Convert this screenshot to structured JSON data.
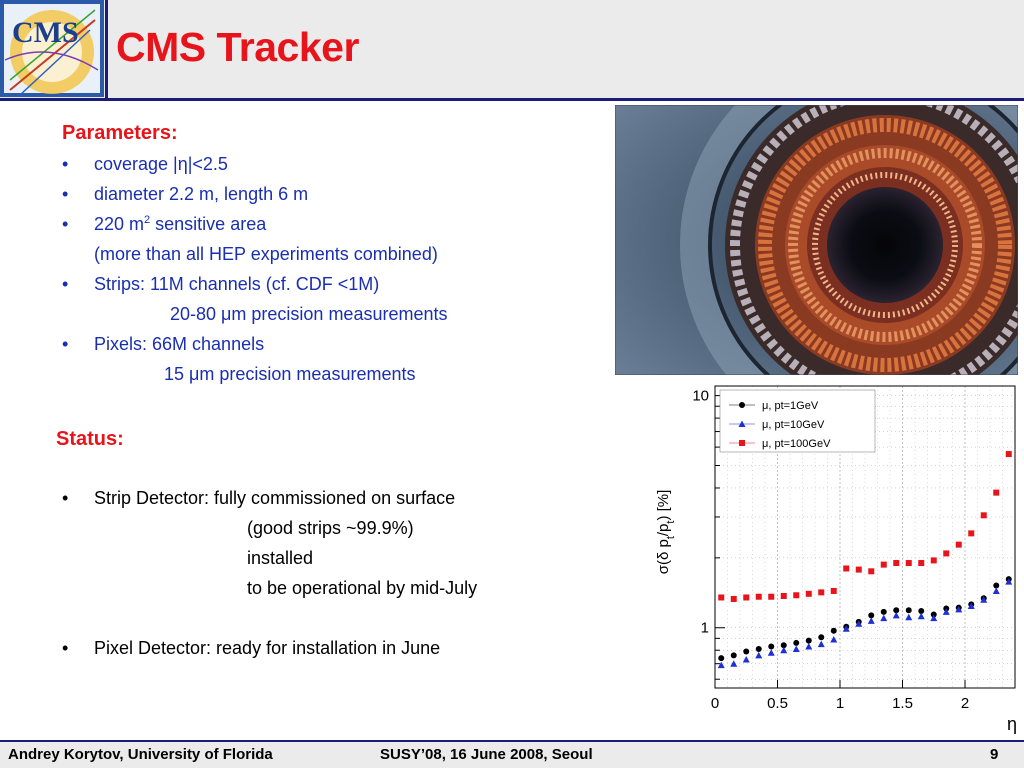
{
  "header": {
    "title": "CMS Tracker",
    "logo_text": "CMS"
  },
  "parameters": {
    "heading": "Parameters:",
    "lines": [
      "coverage |η|<2.5",
      "diameter 2.2 m, length 6 m",
      "220 m",
      "2",
      " sensitive area",
      "(more than all HEP experiments combined)",
      "Strips: 11M channels (cf. CDF <1M)",
      "20-80 μm precision measurements",
      "Pixels: 66M channels",
      "15 μm precision measurements"
    ]
  },
  "status": {
    "heading": "Status:",
    "lines": [
      "Strip Detector: fully commissioned on surface",
      "(good strips ~99.9%)",
      "installed",
      "to be operational by mid-July",
      "Pixel Detector: ready for installation in June"
    ]
  },
  "bullet_char": "•",
  "footer": {
    "author": "Andrey Korytov, University of Florida",
    "event": "SUSY’08, 16 June 2008, Seoul",
    "page": "9"
  },
  "chart_data": {
    "type": "scatter",
    "ylabel": "σ(δ pt/pt) [%]",
    "ylabel_parts": [
      "σ(δ p",
      "t",
      "/p",
      "t",
      ") [%]"
    ],
    "xlabel": "η",
    "x_ticks": [
      "0",
      "0.5",
      "1",
      "1.5",
      "2"
    ],
    "y_ticks": [
      "1",
      "10"
    ],
    "y_scale": "log",
    "xlim": [
      0,
      2.4
    ],
    "ylim": [
      0.55,
      11
    ],
    "legend_position": "top-left",
    "series": [
      {
        "name": "μ, pt=1GeV",
        "marker": "circle",
        "color": "#000000",
        "x": [
          0.05,
          0.15,
          0.25,
          0.35,
          0.45,
          0.55,
          0.65,
          0.75,
          0.85,
          0.95,
          1.05,
          1.15,
          1.25,
          1.35,
          1.45,
          1.55,
          1.65,
          1.75,
          1.85,
          1.95,
          2.05,
          2.15,
          2.25,
          2.35
        ],
        "y": [
          0.74,
          0.76,
          0.79,
          0.81,
          0.83,
          0.84,
          0.86,
          0.88,
          0.91,
          0.97,
          1.01,
          1.06,
          1.13,
          1.17,
          1.19,
          1.19,
          1.18,
          1.14,
          1.21,
          1.22,
          1.26,
          1.34,
          1.52,
          1.62
        ]
      },
      {
        "name": "μ, pt=10GeV",
        "marker": "triangle",
        "color": "#1f2fd6",
        "x": [
          0.05,
          0.15,
          0.25,
          0.35,
          0.45,
          0.55,
          0.65,
          0.75,
          0.85,
          0.95,
          1.05,
          1.15,
          1.25,
          1.35,
          1.45,
          1.55,
          1.65,
          1.75,
          1.85,
          1.95,
          2.05,
          2.15,
          2.25,
          2.35
        ],
        "y": [
          0.69,
          0.7,
          0.73,
          0.76,
          0.78,
          0.8,
          0.81,
          0.83,
          0.85,
          0.89,
          0.99,
          1.04,
          1.07,
          1.1,
          1.13,
          1.11,
          1.12,
          1.1,
          1.17,
          1.2,
          1.24,
          1.32,
          1.44,
          1.58
        ]
      },
      {
        "name": "μ, pt=100GeV",
        "marker": "square",
        "color": "#e8141b",
        "x": [
          0.05,
          0.15,
          0.25,
          0.35,
          0.45,
          0.55,
          0.65,
          0.75,
          0.85,
          0.95,
          1.05,
          1.15,
          1.25,
          1.35,
          1.45,
          1.55,
          1.65,
          1.75,
          1.85,
          1.95,
          2.05,
          2.15,
          2.25,
          2.35
        ],
        "y": [
          1.35,
          1.33,
          1.35,
          1.36,
          1.36,
          1.37,
          1.38,
          1.4,
          1.42,
          1.44,
          1.8,
          1.78,
          1.75,
          1.87,
          1.9,
          1.9,
          1.9,
          1.95,
          2.09,
          2.28,
          2.55,
          3.05,
          3.82,
          5.6
        ]
      }
    ],
    "grid": true
  }
}
